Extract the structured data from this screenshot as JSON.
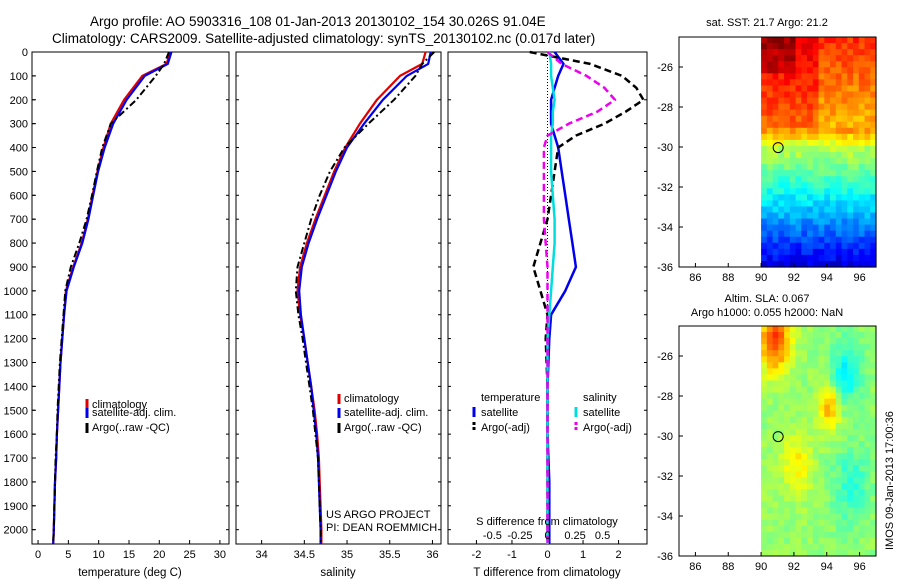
{
  "titles": {
    "line1": "Argo profile: AO 5903316_108 01-Jan-2013 20130102_154 30.026S 91.04E",
    "line2": "Climatology: CARS2009. Satellite-adjusted climatology: synTS_20130102.nc (0.017d later)",
    "credit": "IMOS 09-Jan-2013 17:00:36",
    "project1": "US ARGO PROJECT",
    "project2": "PI: DEAN ROEMMICH"
  },
  "colors": {
    "clim": "#e00000",
    "sat": "#0000ee",
    "argo": "#000000",
    "sal_sat": "#00dddd",
    "sal_argo": "#ee00ee"
  },
  "depth_ticks": [
    "0",
    "100",
    "200",
    "300",
    "400",
    "500",
    "600",
    "700",
    "800",
    "900",
    "1000",
    "1100",
    "1200",
    "1300",
    "1400",
    "1500",
    "1600",
    "1700",
    "1800",
    "1900",
    "2000"
  ],
  "chart_data": [
    {
      "type": "line",
      "name": "temperature",
      "xlabel": "temperature (deg C)",
      "xlim": [
        -1,
        31.5
      ],
      "ylim": [
        0,
        2060
      ],
      "xticks": [
        "0",
        "5",
        "10",
        "15",
        "20",
        "25",
        "30"
      ],
      "depth": [
        0,
        50,
        100,
        200,
        300,
        400,
        500,
        600,
        700,
        800,
        900,
        1000,
        1100,
        1200,
        1300,
        1400,
        1500,
        1600,
        1700,
        1800,
        1900,
        2000,
        2060
      ],
      "series": [
        {
          "name": "climatology",
          "values": [
            21.8,
            21.2,
            17.2,
            14.2,
            12.0,
            10.8,
            9.8,
            9.0,
            8.2,
            7.2,
            5.8,
            4.6,
            4.3,
            4.0,
            3.7,
            3.5,
            3.3,
            3.1,
            3.0,
            2.8,
            2.7,
            2.6,
            2.5
          ]
        },
        {
          "name": "satellite-adj. clim.",
          "values": [
            22.0,
            21.4,
            17.6,
            14.6,
            12.4,
            11.0,
            9.9,
            9.1,
            8.3,
            7.3,
            5.9,
            4.7,
            4.3,
            4.0,
            3.7,
            3.5,
            3.3,
            3.1,
            3.0,
            2.8,
            2.7,
            2.6,
            2.5
          ]
        },
        {
          "name": "Argo(..raw -QC)",
          "values": [
            21.6,
            20.8,
            19.4,
            16.2,
            12.0,
            10.6,
            9.7,
            8.9,
            8.0,
            6.8,
            5.4,
            4.5,
            4.2,
            3.9,
            3.6,
            3.4,
            3.2,
            3.1,
            2.9,
            2.8,
            2.7,
            2.6,
            2.5
          ]
        }
      ],
      "legend": [
        "climatology",
        "satellite-adj. clim.",
        "Argo(..raw -QC)"
      ]
    },
    {
      "type": "line",
      "name": "salinity",
      "xlabel": "salinity",
      "xlim": [
        33.7,
        36.1
      ],
      "ylim": [
        0,
        2060
      ],
      "xticks": [
        "34",
        "34.5",
        "35",
        "35.5",
        "36"
      ],
      "depth": [
        0,
        50,
        100,
        200,
        300,
        400,
        500,
        600,
        700,
        800,
        900,
        1000,
        1100,
        1200,
        1300,
        1400,
        1500,
        1600,
        1700,
        1800,
        1900,
        2000,
        2060
      ],
      "series": [
        {
          "name": "climatology",
          "values": [
            35.92,
            35.88,
            35.62,
            35.35,
            35.15,
            34.98,
            34.85,
            34.74,
            34.63,
            34.53,
            34.45,
            34.42,
            34.45,
            34.5,
            34.54,
            34.58,
            34.62,
            34.65,
            34.67,
            34.68,
            34.69,
            34.7,
            34.7
          ]
        },
        {
          "name": "satellite-adj. clim.",
          "values": [
            35.98,
            35.95,
            35.7,
            35.42,
            35.2,
            35.0,
            34.87,
            34.76,
            34.65,
            34.55,
            34.47,
            34.44,
            34.46,
            34.5,
            34.54,
            34.58,
            34.61,
            34.64,
            34.66,
            34.67,
            34.68,
            34.69,
            34.69
          ]
        },
        {
          "name": "Argo(..raw -QC)",
          "values": [
            36.02,
            35.88,
            35.8,
            35.55,
            35.25,
            34.97,
            34.8,
            34.68,
            34.58,
            34.5,
            34.42,
            34.4,
            34.43,
            34.48,
            34.52,
            34.56,
            34.6,
            34.63,
            34.66,
            34.67,
            34.68,
            34.69,
            34.69
          ]
        }
      ],
      "legend": [
        "climatology",
        "satellite-adj. clim.",
        "Argo(..raw -QC)"
      ]
    },
    {
      "type": "line",
      "name": "differences",
      "xlabel": "T difference from climatology",
      "xlim": [
        -2.8,
        2.8
      ],
      "ylim": [
        0,
        2060
      ],
      "xticks": [
        "-2",
        "-1",
        "0",
        "1",
        "2"
      ],
      "top_label": "S difference from climatology",
      "top_ticks": [
        "-0.5",
        "-0.25",
        "0",
        "0.25",
        "0.5"
      ],
      "depth": [
        0,
        50,
        100,
        150,
        200,
        250,
        300,
        350,
        400,
        500,
        600,
        700,
        800,
        900,
        1000,
        1100,
        1200,
        1400,
        1600,
        1800,
        2000,
        2060
      ],
      "series": [
        {
          "name": "temperature satellite",
          "values": [
            0.2,
            0.45,
            0.3,
            0.2,
            0.1,
            0.1,
            0.1,
            0.2,
            0.3,
            0.4,
            0.5,
            0.6,
            0.7,
            0.8,
            0.5,
            0.1,
            0.05,
            0.0,
            0.0,
            0.05,
            0.05,
            0.05
          ]
        },
        {
          "name": "temperature Argo(-adj)",
          "values": [
            -0.5,
            1.2,
            2.1,
            2.5,
            2.7,
            2.2,
            1.6,
            0.8,
            0.3,
            0.2,
            0.1,
            0.0,
            -0.2,
            -0.4,
            -0.2,
            0.0,
            -0.05,
            0.0,
            0.0,
            0.0,
            0.0,
            0.0
          ]
        },
        {
          "name": "salinity satellite",
          "values": [
            0.05,
            0.1,
            0.1,
            0.15,
            0.2,
            0.15,
            0.15,
            0.1,
            0.1,
            0.1,
            0.15,
            0.2,
            0.2,
            0.15,
            0.1,
            0.05,
            0.0,
            0.0,
            0.0,
            0.0,
            0.0,
            0.0
          ]
        },
        {
          "name": "salinity Argo(-adj)",
          "values": [
            0.0,
            0.4,
            1.1,
            1.6,
            1.9,
            1.4,
            0.6,
            0.0,
            -0.1,
            -0.1,
            -0.1,
            -0.1,
            -0.05,
            0.0,
            0.0,
            0.0,
            0.0,
            0.0,
            0.0,
            0.0,
            0.0,
            0.0
          ]
        }
      ],
      "legend_groups": [
        "temperature",
        "salinity"
      ],
      "legend": [
        "satellite",
        "Argo(-adj)",
        "satellite",
        "Argo(-adj)"
      ]
    },
    {
      "type": "heatmap",
      "name": "sst_map",
      "title": "sat. SST: 21.7 Argo: 21.2",
      "xlim": [
        85,
        97
      ],
      "ylim": [
        -36,
        -24.5
      ],
      "xticks": [
        "86",
        "88",
        "90",
        "92",
        "94",
        "96"
      ],
      "yticks": [
        "-26",
        "-28",
        "-30",
        "-32",
        "-34",
        "-36"
      ],
      "data_extent_lon": [
        90,
        97
      ],
      "marker": {
        "lon": 91.04,
        "lat": -30.03
      },
      "colormap": "jet"
    },
    {
      "type": "heatmap",
      "name": "sla_map",
      "title_line1": "Altim. SLA: 0.067",
      "title_line2": "Argo h1000: 0.055 h2000: NaN",
      "xlim": [
        85,
        97
      ],
      "ylim": [
        -36,
        -24.5
      ],
      "xticks": [
        "86",
        "88",
        "90",
        "92",
        "94",
        "96"
      ],
      "yticks": [
        "-26",
        "-28",
        "-30",
        "-32",
        "-34",
        "-36"
      ],
      "data_extent_lon": [
        90,
        97
      ],
      "marker": {
        "lon": 91.04,
        "lat": -30.03
      },
      "colormap": "jet"
    }
  ]
}
